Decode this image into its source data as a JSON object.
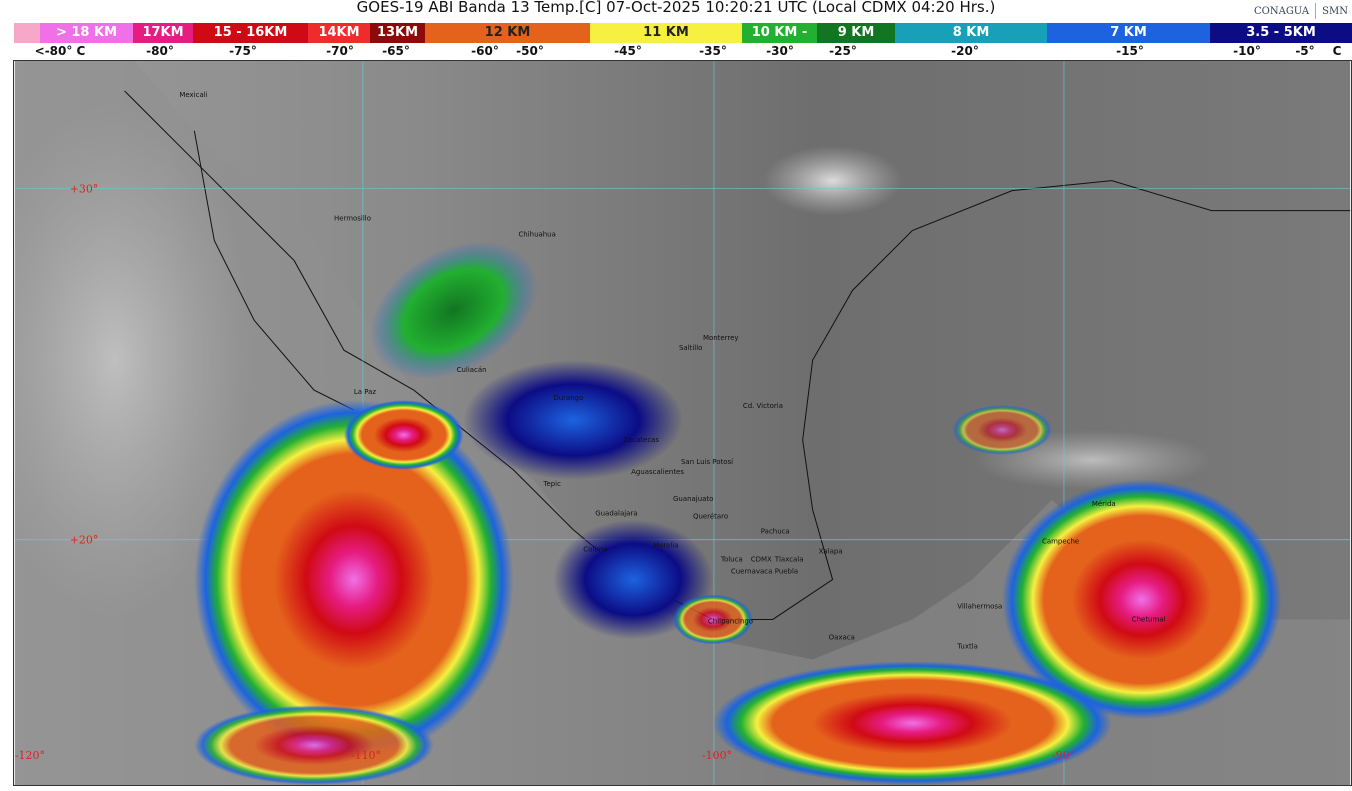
{
  "title": "GOES-19 ABI Banda 13 Temp.[C] 07-Oct-2025 10:20:21 UTC (Local CDMX  04:20 Hrs.)",
  "logos": [
    "CONAGUA",
    "SMN"
  ],
  "legend": {
    "segments": [
      {
        "label": "",
        "color": "#f7a8c8"
      },
      {
        "label": "> 18 KM",
        "color": "#f070e8"
      },
      {
        "label": "17KM",
        "color": "#e61c82"
      },
      {
        "label": "15 - 16KM",
        "color": "#d00a14"
      },
      {
        "label": "14KM",
        "color": "#ef2b2b"
      },
      {
        "label": "13KM",
        "color": "#8c0a0a"
      },
      {
        "label": "12 KM",
        "color": "#e4621c"
      },
      {
        "label": "11 KM",
        "color": "#f6f040"
      },
      {
        "label": "10 KM -",
        "color": "#22b030"
      },
      {
        "label": "9 KM",
        "color": "#127522"
      },
      {
        "label": "8 KM",
        "color": "#18a0b8"
      },
      {
        "label": "7 KM",
        "color": "#1d63e0"
      },
      {
        "label": "3.5 - 5KM",
        "color": "#0c0c85"
      }
    ],
    "temps": [
      "<-80° C",
      "-80°",
      "-75°",
      "-70°",
      "-65°",
      "-60°",
      "-50°",
      "-45°",
      "-35°",
      "-30°",
      "-25°",
      "-20°",
      "-15°",
      "-10°",
      "-5°",
      "C"
    ]
  },
  "map": {
    "lat_labels": [
      "+30°",
      "+20°"
    ],
    "lon_labels": [
      "-120°",
      "-110°",
      "-100°",
      "-90°"
    ],
    "cities": [
      "Mexicali",
      "Hermosillo",
      "Chihuahua",
      "Culiacán",
      "La Paz",
      "Durango",
      "Saltillo",
      "Monterrey",
      "Cd. Victoria",
      "Zacatecas",
      "San Luis Potosí",
      "Aguascalientes",
      "Tepic",
      "Guadalajara",
      "Guanajuato",
      "Querétaro",
      "Pachuca",
      "Colima",
      "Morelia",
      "Toluca",
      "CDMX",
      "Tlaxcala",
      "Cuernavaca",
      "Puebla",
      "Xalapa",
      "Chilpancingo",
      "Oaxaca",
      "Tuxtla",
      "Villahermosa",
      "Campeche",
      "Mérida",
      "Chetumal"
    ]
  }
}
